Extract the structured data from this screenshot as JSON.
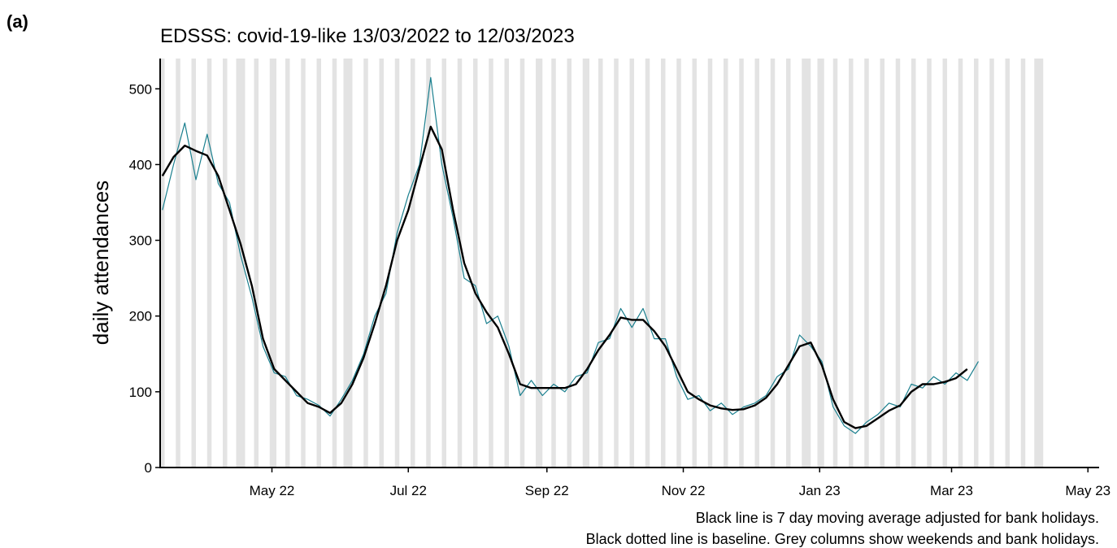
{
  "chart_data": {
    "type": "line",
    "panel_label": "(a)",
    "title": "EDSSS: covid-19-like 13/03/2022 to 12/03/2023",
    "y_label": "daily attendances",
    "notes": [
      "Black line is 7 day moving average adjusted for bank holidays.",
      "Black dotted line is baseline. Grey columns show weekends and bank holidays."
    ],
    "x": [
      0,
      5,
      10,
      15,
      20,
      25,
      30,
      35,
      40,
      45,
      50,
      55,
      60,
      65,
      70,
      75,
      80,
      85,
      90,
      95,
      100,
      105,
      110,
      115,
      120,
      125,
      130,
      135,
      140,
      145,
      150,
      155,
      160,
      165,
      170,
      175,
      180,
      185,
      190,
      195,
      200,
      205,
      210,
      215,
      220,
      225,
      230,
      235,
      240,
      245,
      250,
      255,
      260,
      265,
      270,
      275,
      280,
      285,
      290,
      295,
      300,
      305,
      310,
      315,
      320,
      325,
      330,
      335,
      340,
      345,
      350,
      355,
      360,
      365
    ],
    "series": [
      {
        "color": "#1a7f8e",
        "width": 1.2,
        "values": [
          340,
          400,
          455,
          380,
          440,
          375,
          350,
          280,
          225,
          160,
          125,
          120,
          95,
          90,
          82,
          68,
          90,
          115,
          150,
          200,
          230,
          310,
          360,
          400,
          515,
          400,
          330,
          250,
          240,
          190,
          200,
          160,
          95,
          115,
          95,
          110,
          100,
          120,
          125,
          165,
          170,
          210,
          185,
          210,
          170,
          170,
          120,
          90,
          95,
          75,
          85,
          70,
          80,
          85,
          95,
          120,
          130,
          175,
          160,
          140,
          80,
          55,
          45,
          60,
          70,
          85,
          80,
          110,
          105,
          120,
          110,
          125,
          115,
          140
        ]
      },
      {
        "color": "#000000",
        "width": 2.4,
        "values": [
          385,
          410,
          425,
          418,
          412,
          385,
          340,
          295,
          240,
          170,
          130,
          115,
          100,
          85,
          80,
          72,
          85,
          110,
          145,
          190,
          240,
          300,
          340,
          395,
          450,
          420,
          340,
          270,
          230,
          205,
          185,
          150,
          110,
          105,
          105,
          105,
          105,
          110,
          130,
          155,
          175,
          198,
          195,
          195,
          180,
          160,
          130,
          100,
          90,
          82,
          78,
          76,
          77,
          82,
          92,
          110,
          135,
          160,
          165,
          135,
          90,
          60,
          52,
          55,
          65,
          75,
          82,
          100,
          110,
          110,
          113,
          118,
          130,
          null
        ]
      }
    ],
    "shaded_ranges": [
      [
        -1,
        1
      ],
      [
        6,
        8
      ],
      [
        13,
        15
      ],
      [
        20,
        22
      ],
      [
        27,
        29
      ],
      [
        33,
        37
      ],
      [
        41,
        43
      ],
      [
        48,
        51
      ],
      [
        55,
        57
      ],
      [
        62,
        64
      ],
      [
        69,
        71
      ],
      [
        76,
        78
      ],
      [
        81,
        85
      ],
      [
        90,
        92
      ],
      [
        97,
        99
      ],
      [
        104,
        106
      ],
      [
        111,
        113
      ],
      [
        118,
        120
      ],
      [
        125,
        127
      ],
      [
        132,
        134
      ],
      [
        139,
        141
      ],
      [
        146,
        148
      ],
      [
        153,
        155
      ],
      [
        160,
        162
      ],
      [
        167,
        170
      ],
      [
        174,
        176
      ],
      [
        181,
        183
      ],
      [
        188,
        191
      ],
      [
        195,
        197
      ],
      [
        202,
        204
      ],
      [
        209,
        211
      ],
      [
        216,
        218
      ],
      [
        223,
        225
      ],
      [
        230,
        232
      ],
      [
        237,
        239
      ],
      [
        244,
        246
      ],
      [
        251,
        253
      ],
      [
        258,
        260
      ],
      [
        265,
        267
      ],
      [
        272,
        274
      ],
      [
        279,
        281
      ],
      [
        286,
        290
      ],
      [
        293,
        296
      ],
      [
        300,
        302
      ],
      [
        307,
        309
      ],
      [
        314,
        316
      ],
      [
        321,
        323
      ],
      [
        328,
        330
      ],
      [
        335,
        337
      ],
      [
        342,
        344
      ],
      [
        349,
        351
      ],
      [
        356,
        358
      ],
      [
        363,
        365
      ],
      [
        370,
        372
      ],
      [
        377,
        379
      ],
      [
        384,
        386
      ],
      [
        390,
        394
      ]
    ],
    "shade_color": "#e3e3e3",
    "xlim": [
      -1,
      419
    ],
    "xticks": [
      {
        "value": 49,
        "label": "May 22"
      },
      {
        "value": 110,
        "label": "Jul 22"
      },
      {
        "value": 172,
        "label": "Sep 22"
      },
      {
        "value": 233,
        "label": "Nov 22"
      },
      {
        "value": 294,
        "label": "Jan 23"
      },
      {
        "value": 353,
        "label": "Mar 23"
      },
      {
        "value": 414,
        "label": "May 23"
      }
    ],
    "ylim": [
      0,
      540
    ],
    "yticks": [
      0,
      100,
      200,
      300,
      400,
      500
    ],
    "grid": false
  }
}
